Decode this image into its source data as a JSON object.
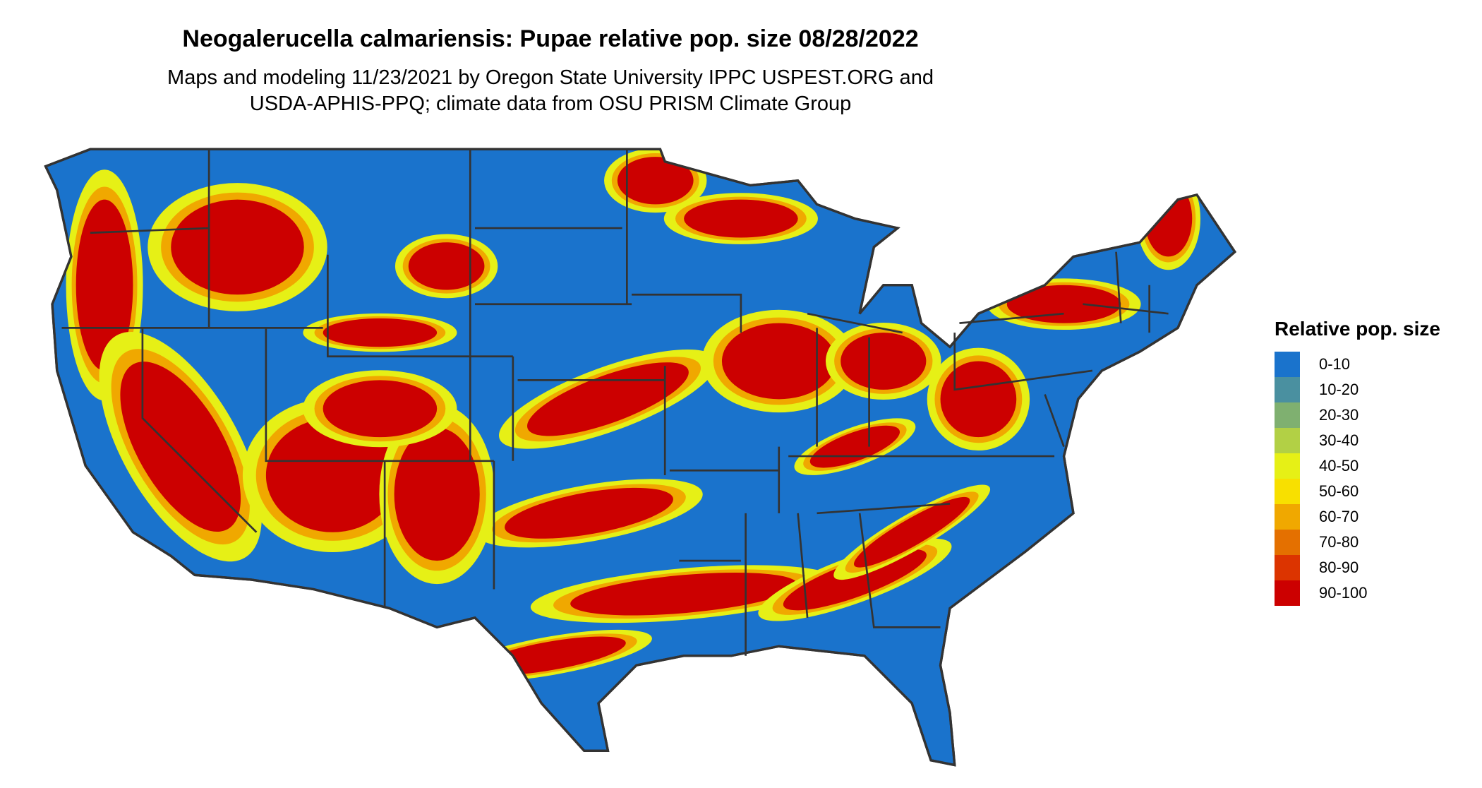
{
  "title": "Neogalerucella calmariensis: Pupae relative pop. size 08/28/2022",
  "subtitle_line1": "Maps and modeling 11/23/2021 by Oregon State University IPPC USPEST.ORG and",
  "subtitle_line2": "USDA-APHIS-PPQ; climate data from OSU PRISM Climate Group",
  "legend": {
    "title": "Relative pop. size",
    "items": [
      {
        "label": "0-10",
        "color": "#1a73cc"
      },
      {
        "label": "10-20",
        "color": "#4a90a0"
      },
      {
        "label": "20-30",
        "color": "#7fb070"
      },
      {
        "label": "30-40",
        "color": "#b2d045"
      },
      {
        "label": "40-50",
        "color": "#e6f016"
      },
      {
        "label": "50-60",
        "color": "#f8e000"
      },
      {
        "label": "60-70",
        "color": "#f0a800"
      },
      {
        "label": "70-80",
        "color": "#e47000"
      },
      {
        "label": "80-90",
        "color": "#dc3400"
      },
      {
        "label": "90-100",
        "color": "#cc0000"
      }
    ]
  },
  "map": {
    "region": "Contiguous United States",
    "border_color": "#333333"
  }
}
